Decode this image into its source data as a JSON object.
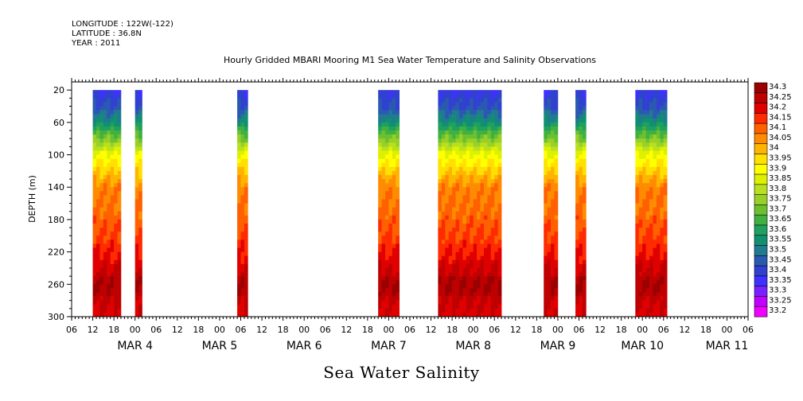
{
  "header": {
    "longitude": "LONGITUDE : 122W(-122)",
    "latitude": "LATITUDE : 36.8N",
    "year": "YEAR : 2011"
  },
  "chart_data": {
    "type": "heatmap",
    "title": "Hourly Gridded MBARI Mooring M1 Sea Water Temperature and Salinity Observations",
    "xlabel": "Sea Water Salinity",
    "ylabel": "DEPTH (m)",
    "y_axis": {
      "range": [
        300,
        10
      ],
      "inverted": true,
      "ticks": [
        20,
        60,
        100,
        140,
        180,
        220,
        260,
        300
      ]
    },
    "x_axis": {
      "range_hours_from_mar3_06": [
        0,
        192
      ],
      "hour_tick_labels": [
        "06",
        "12",
        "18",
        "00",
        "06",
        "12",
        "18",
        "00",
        "06",
        "12",
        "18",
        "00",
        "06",
        "12",
        "18",
        "00",
        "06",
        "12",
        "18",
        "00",
        "06",
        "12",
        "18",
        "00",
        "06",
        "12",
        "18",
        "00",
        "06",
        "12",
        "18",
        "00",
        "06"
      ],
      "day_labels": [
        {
          "label": "MAR  4",
          "center_hour": 18
        },
        {
          "label": "MAR  5",
          "center_hour": 42
        },
        {
          "label": "MAR  6",
          "center_hour": 66
        },
        {
          "label": "MAR  7",
          "center_hour": 90
        },
        {
          "label": "MAR  8",
          "center_hour": 114
        },
        {
          "label": "MAR  9",
          "center_hour": 138
        },
        {
          "label": "MAR 10",
          "center_hour": 162
        },
        {
          "label": "MAR 11",
          "center_hour": 186
        }
      ]
    },
    "colorbar": {
      "levels": [
        "34.3",
        "34.25",
        "34.2",
        "34.15",
        "34.1",
        "34.05",
        "34",
        "33.95",
        "33.9",
        "33.85",
        "33.8",
        "33.75",
        "33.7",
        "33.65",
        "33.6",
        "33.55",
        "33.5",
        "33.45",
        "33.4",
        "33.35",
        "33.3",
        "33.25",
        "33.2"
      ],
      "colors": [
        "#9a0000",
        "#be0000",
        "#e00000",
        "#ff2a00",
        "#ff6000",
        "#ff8c00",
        "#ffb400",
        "#ffe000",
        "#ffff00",
        "#ddf000",
        "#b8e020",
        "#98d028",
        "#6cc030",
        "#40b040",
        "#20a060",
        "#109070",
        "#207a90",
        "#2a5ab0",
        "#3040d0",
        "#4030ff",
        "#7820ff",
        "#c000ff",
        "#f000ff"
      ]
    },
    "data_segments": [
      {
        "start_hour": 6,
        "end_hour": 14
      },
      {
        "start_hour": 18,
        "end_hour": 20
      },
      {
        "start_hour": 47,
        "end_hour": 50
      },
      {
        "start_hour": 87,
        "end_hour": 93
      },
      {
        "start_hour": 104,
        "end_hour": 122
      },
      {
        "start_hour": 134,
        "end_hour": 138
      },
      {
        "start_hour": 143,
        "end_hour": 146
      },
      {
        "start_hour": 160,
        "end_hour": 169
      }
    ],
    "salinity_profile": [
      {
        "depth": 20,
        "salinity": 33.38
      },
      {
        "depth": 40,
        "salinity": 33.42
      },
      {
        "depth": 60,
        "salinity": 33.55
      },
      {
        "depth": 80,
        "salinity": 33.72
      },
      {
        "depth": 100,
        "salinity": 33.88
      },
      {
        "depth": 120,
        "salinity": 33.97
      },
      {
        "depth": 140,
        "salinity": 34.06
      },
      {
        "depth": 180,
        "salinity": 34.1
      },
      {
        "depth": 210,
        "salinity": 34.15
      },
      {
        "depth": 235,
        "salinity": 34.21
      },
      {
        "depth": 260,
        "salinity": 34.28
      },
      {
        "depth": 280,
        "salinity": 34.24
      },
      {
        "depth": 300,
        "salinity": 34.2
      }
    ]
  }
}
